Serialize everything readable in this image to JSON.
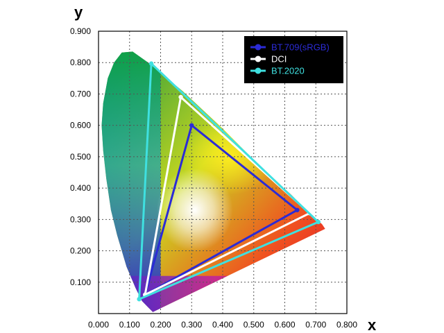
{
  "chart_data": {
    "type": "scatter",
    "title": "",
    "xlabel": "x",
    "ylabel": "y",
    "xlim": [
      0,
      0.8
    ],
    "ylim": [
      0,
      0.9
    ],
    "xticks": [
      "0.000",
      "0.100",
      "0.200",
      "0.300",
      "0.400",
      "0.500",
      "0.600",
      "0.700",
      "0.800"
    ],
    "yticks": [
      "0.100",
      "0.200",
      "0.300",
      "0.400",
      "0.500",
      "0.600",
      "0.700",
      "0.800",
      "0.900"
    ],
    "grid": true,
    "legend_position": "top-right",
    "background_region": "CIE 1931 chromaticity diagram (spectral locus)",
    "series": [
      {
        "name": "BT.709(sRGB)",
        "color": "#2b2bd6",
        "closed": true,
        "points": [
          [
            0.64,
            0.33
          ],
          [
            0.3,
            0.6
          ],
          [
            0.15,
            0.06
          ]
        ]
      },
      {
        "name": "DCI",
        "color": "#ffffff",
        "closed": true,
        "points": [
          [
            0.68,
            0.32
          ],
          [
            0.265,
            0.69
          ],
          [
            0.15,
            0.06
          ]
        ]
      },
      {
        "name": "BT.2020",
        "color": "#3fe0e0",
        "closed": true,
        "points": [
          [
            0.708,
            0.292
          ],
          [
            0.17,
            0.797
          ],
          [
            0.131,
            0.046
          ]
        ]
      }
    ]
  }
}
